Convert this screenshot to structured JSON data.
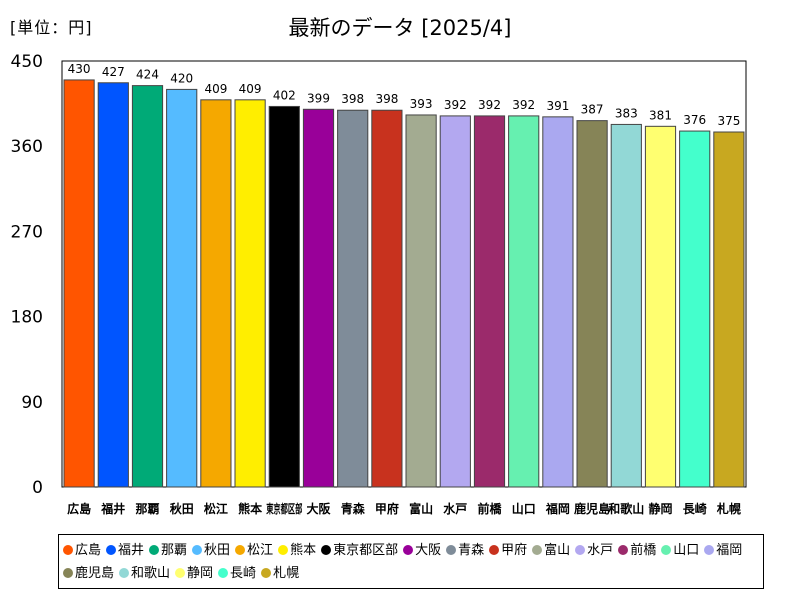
{
  "unit_label": "[単位：円]",
  "chart_data": {
    "type": "bar",
    "title": "最新のデータ [2025/4]",
    "xlabel": "",
    "ylabel": "",
    "ylim": [
      0,
      450
    ],
    "yticks": [
      0,
      90,
      180,
      270,
      360,
      450
    ],
    "grid": false,
    "legend_position": "bottom",
    "categories": [
      "広島",
      "福井",
      "那覇",
      "秋田",
      "松江",
      "熊本",
      "東京都区部",
      "大阪",
      "青森",
      "甲府",
      "富山",
      "水戸",
      "前橋",
      "山口",
      "福岡",
      "鹿児島",
      "和歌山",
      "静岡",
      "長崎",
      "札幌"
    ],
    "tick_labels": [
      "広島",
      "福井",
      "那覇",
      "秋田",
      "松江",
      "熊本",
      "東京都区部",
      "大阪",
      "青森",
      "甲府",
      "富山",
      "水戸",
      "前橋",
      "山口",
      "福岡",
      "鹿児島",
      "和歌山",
      "静岡",
      "長崎",
      "札幌"
    ],
    "values": [
      430,
      427,
      424,
      420,
      409,
      409,
      402,
      399,
      398,
      398,
      393,
      392,
      392,
      392,
      391,
      387,
      383,
      381,
      376,
      375
    ],
    "colors": [
      "#ff5500",
      "#0055ff",
      "#00aa77",
      "#55bbff",
      "#f5a800",
      "#ffee00",
      "#000000",
      "#990099",
      "#7f8c99",
      "#c8321e",
      "#a3ab91",
      "#b3a8f0",
      "#9b2a6b",
      "#66f0b0",
      "#aaa8f0",
      "#868457",
      "#92d8d6",
      "#ffff70",
      "#44ffcc",
      "#c8a820"
    ]
  }
}
